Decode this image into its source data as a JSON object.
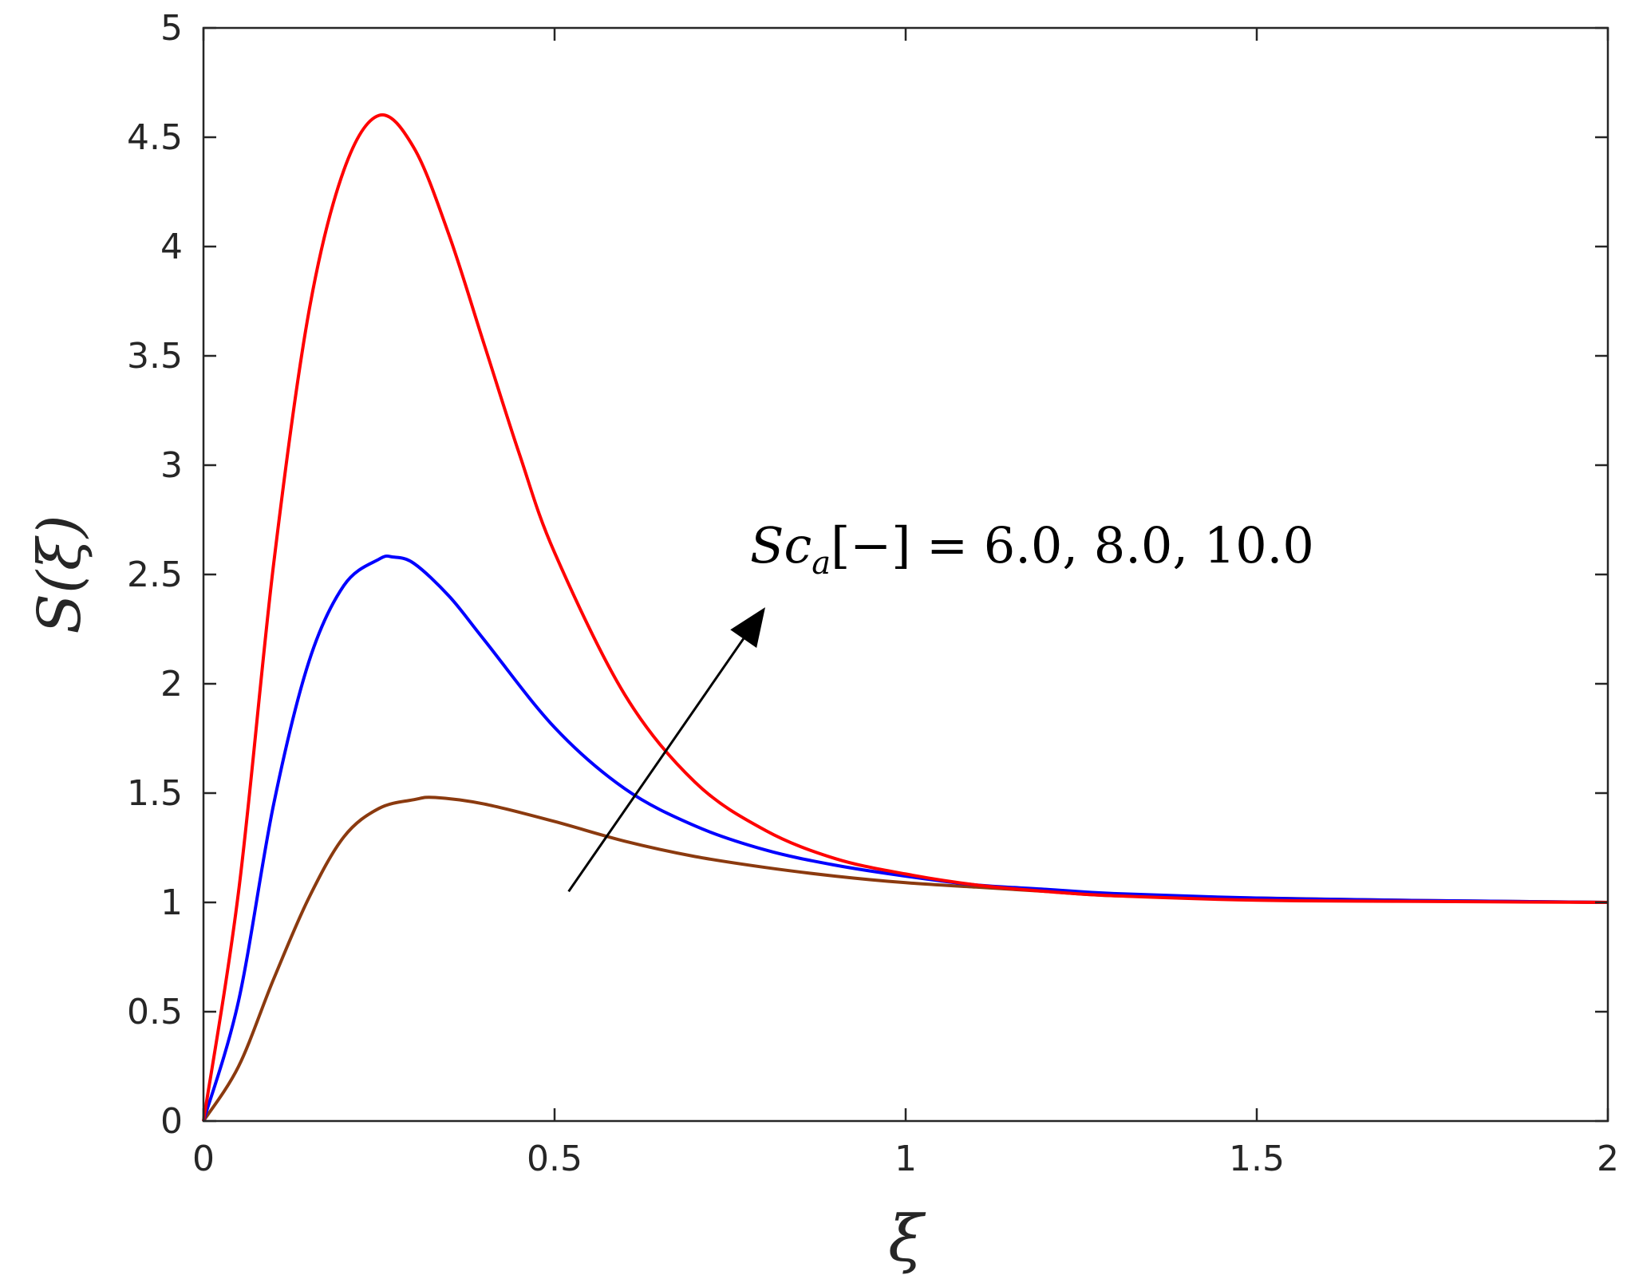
{
  "chart_data": {
    "type": "line",
    "xlabel": "ξ",
    "ylabel": "S(ξ)",
    "xlim": [
      0,
      2
    ],
    "ylim": [
      0,
      5
    ],
    "xticks": [
      0,
      0.5,
      1,
      1.5,
      2
    ],
    "xtick_labels": [
      "0",
      "0.5",
      "1",
      "1.5",
      "2"
    ],
    "yticks": [
      0,
      0.5,
      1,
      1.5,
      2,
      2.5,
      3,
      3.5,
      4,
      4.5,
      5
    ],
    "ytick_labels": [
      "0",
      "0.5",
      "1",
      "1.5",
      "2",
      "2.5",
      "3",
      "3.5",
      "4",
      "4.5",
      "5"
    ],
    "grid": false,
    "annotation": {
      "text_sc": "Sc",
      "text_sub": "a",
      "text_rest": "[−] = 6.0, 8.0, 10.0",
      "arrow_from": [
        0.52,
        1.05
      ],
      "arrow_to": [
        0.8,
        2.35
      ]
    },
    "series": [
      {
        "color": "#8B3A0F",
        "x": [
          0,
          0.05,
          0.1,
          0.15,
          0.2,
          0.25,
          0.3,
          0.33,
          0.4,
          0.5,
          0.6,
          0.7,
          0.8,
          0.9,
          1.0,
          1.1,
          1.2,
          1.3,
          1.5,
          1.7,
          2.0
        ],
        "y": [
          0,
          0.25,
          0.65,
          1.02,
          1.3,
          1.43,
          1.47,
          1.48,
          1.45,
          1.37,
          1.28,
          1.21,
          1.16,
          1.12,
          1.09,
          1.07,
          1.05,
          1.03,
          1.02,
          1.01,
          1.0
        ]
      },
      {
        "color": "#0000FF",
        "x": [
          0,
          0.05,
          0.1,
          0.15,
          0.2,
          0.25,
          0.27,
          0.3,
          0.35,
          0.4,
          0.5,
          0.6,
          0.7,
          0.8,
          0.9,
          1.0,
          1.1,
          1.2,
          1.3,
          1.5,
          1.7,
          2.0
        ],
        "y": [
          0,
          0.55,
          1.45,
          2.1,
          2.45,
          2.57,
          2.58,
          2.55,
          2.4,
          2.2,
          1.8,
          1.52,
          1.35,
          1.24,
          1.17,
          1.12,
          1.08,
          1.06,
          1.04,
          1.02,
          1.01,
          1.0
        ]
      },
      {
        "color": "#FF0000",
        "x": [
          0,
          0.05,
          0.1,
          0.15,
          0.2,
          0.25,
          0.3,
          0.35,
          0.4,
          0.45,
          0.5,
          0.6,
          0.7,
          0.8,
          0.9,
          1.0,
          1.1,
          1.2,
          1.3,
          1.5,
          1.7,
          2.0
        ],
        "y": [
          0,
          1.05,
          2.55,
          3.7,
          4.35,
          4.6,
          4.45,
          4.05,
          3.55,
          3.05,
          2.6,
          1.95,
          1.55,
          1.33,
          1.2,
          1.13,
          1.08,
          1.05,
          1.03,
          1.01,
          1.005,
          1.0
        ]
      }
    ]
  }
}
